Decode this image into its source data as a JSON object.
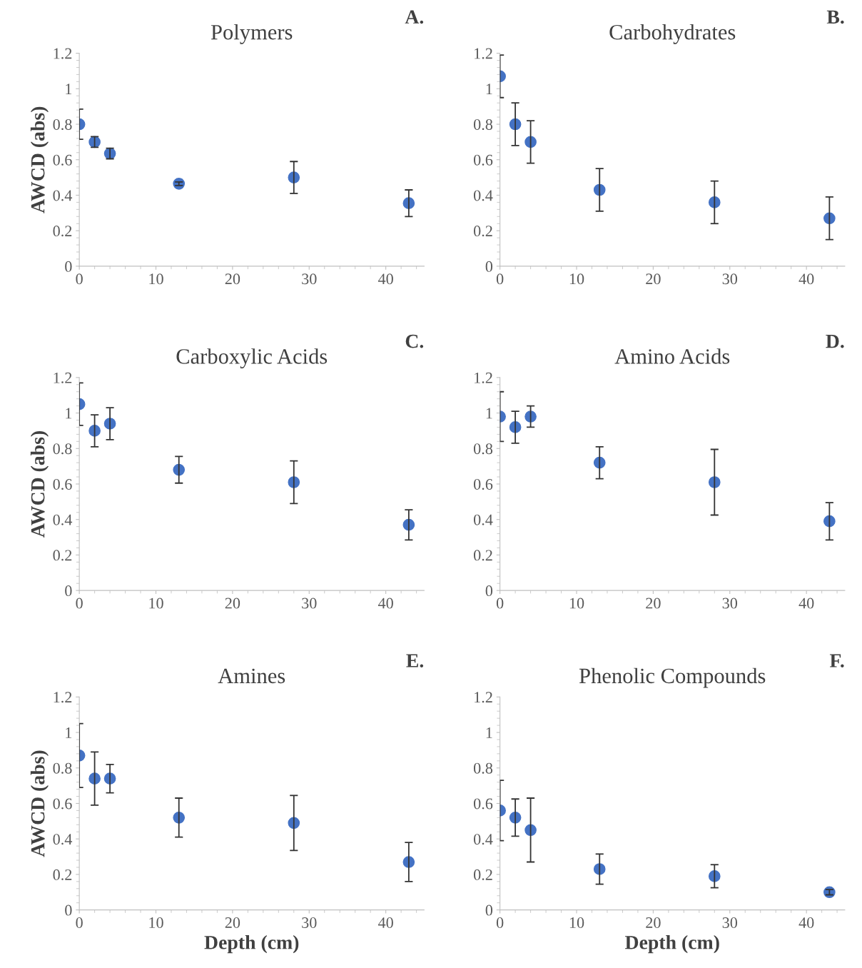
{
  "chart_data": [
    {
      "type": "scatter",
      "title": "Polymers",
      "ylabel": "AWCD (abs)",
      "annotations": [
        "A."
      ],
      "marker": "circle",
      "grid": false,
      "xlim": [
        0,
        45
      ],
      "xticks": [
        0,
        10,
        20,
        30,
        40
      ],
      "ylim": [
        0,
        1.2
      ],
      "yticks": [
        0,
        0.2,
        0.4,
        0.6,
        0.8,
        1,
        1.2
      ],
      "x": [
        0,
        2,
        4,
        13,
        28,
        43
      ],
      "series": [
        {
          "color": "#4472c4",
          "values": [
            0.8,
            0.7,
            0.635,
            0.465,
            0.5,
            0.355
          ],
          "errors": [
            0.085,
            0.03,
            0.03,
            0.01,
            0.09,
            0.075
          ]
        }
      ]
    },
    {
      "type": "scatter",
      "title": "Carbohydrates",
      "annotations": [
        "B."
      ],
      "marker": "circle",
      "grid": false,
      "xlim": [
        0,
        45
      ],
      "xticks": [
        0,
        10,
        20,
        30,
        40
      ],
      "ylim": [
        0,
        1.2
      ],
      "yticks": [
        0,
        0.2,
        0.4,
        0.6,
        0.8,
        1,
        1.2
      ],
      "x": [
        0,
        2,
        4,
        13,
        28,
        43
      ],
      "series": [
        {
          "color": "#4472c4",
          "values": [
            1.07,
            0.8,
            0.7,
            0.43,
            0.36,
            0.27
          ],
          "errors": [
            0.12,
            0.12,
            0.12,
            0.12,
            0.12,
            0.12
          ]
        }
      ]
    },
    {
      "type": "scatter",
      "title": "Carboxylic Acids",
      "ylabel": "AWCD (abs)",
      "annotations": [
        "C."
      ],
      "marker": "circle",
      "grid": false,
      "xlim": [
        0,
        45
      ],
      "xticks": [
        0,
        10,
        20,
        30,
        40
      ],
      "ylim": [
        0,
        1.2
      ],
      "yticks": [
        0,
        0.2,
        0.4,
        0.6,
        0.8,
        1,
        1.2
      ],
      "x": [
        0,
        2,
        4,
        13,
        28,
        43
      ],
      "series": [
        {
          "color": "#4472c4",
          "values": [
            1.05,
            0.9,
            0.94,
            0.68,
            0.61,
            0.37
          ],
          "errors": [
            0.12,
            0.09,
            0.09,
            0.075,
            0.12,
            0.085
          ]
        }
      ]
    },
    {
      "type": "scatter",
      "title": "Amino Acids",
      "annotations": [
        "D."
      ],
      "marker": "circle",
      "grid": false,
      "xlim": [
        0,
        45
      ],
      "xticks": [
        0,
        10,
        20,
        30,
        40
      ],
      "ylim": [
        0,
        1.2
      ],
      "yticks": [
        0,
        0.2,
        0.4,
        0.6,
        0.8,
        1,
        1.2
      ],
      "x": [
        0,
        2,
        4,
        13,
        28,
        43
      ],
      "series": [
        {
          "color": "#4472c4",
          "values": [
            0.98,
            0.92,
            0.98,
            0.72,
            0.61,
            0.39
          ],
          "errors": [
            0.14,
            0.09,
            0.06,
            0.09,
            0.185,
            0.105
          ]
        }
      ]
    },
    {
      "type": "scatter",
      "title": "Amines",
      "ylabel": "AWCD (abs)",
      "xlabel": "Depth (cm)",
      "annotations": [
        "E."
      ],
      "marker": "circle",
      "grid": false,
      "xlim": [
        0,
        45
      ],
      "xticks": [
        0,
        10,
        20,
        30,
        40
      ],
      "ylim": [
        0,
        1.2
      ],
      "yticks": [
        0,
        0.2,
        0.4,
        0.6,
        0.8,
        1,
        1.2
      ],
      "x": [
        0,
        2,
        4,
        13,
        28,
        43
      ],
      "series": [
        {
          "color": "#4472c4",
          "values": [
            0.87,
            0.74,
            0.74,
            0.52,
            0.49,
            0.27
          ],
          "errors": [
            0.18,
            0.15,
            0.08,
            0.11,
            0.155,
            0.11
          ]
        }
      ]
    },
    {
      "type": "scatter",
      "title": "Phenolic Compounds",
      "xlabel": "Depth (cm)",
      "annotations": [
        "F."
      ],
      "marker": "circle",
      "grid": false,
      "xlim": [
        0,
        45
      ],
      "xticks": [
        0,
        10,
        20,
        30,
        40
      ],
      "ylim": [
        0,
        1.2
      ],
      "yticks": [
        0,
        0.2,
        0.4,
        0.6,
        0.8,
        1,
        1.2
      ],
      "x": [
        0,
        2,
        4,
        13,
        28,
        43
      ],
      "series": [
        {
          "color": "#4472c4",
          "values": [
            0.56,
            0.52,
            0.45,
            0.23,
            0.19,
            0.1
          ],
          "errors": [
            0.17,
            0.105,
            0.18,
            0.085,
            0.065,
            0.015
          ]
        }
      ]
    }
  ]
}
